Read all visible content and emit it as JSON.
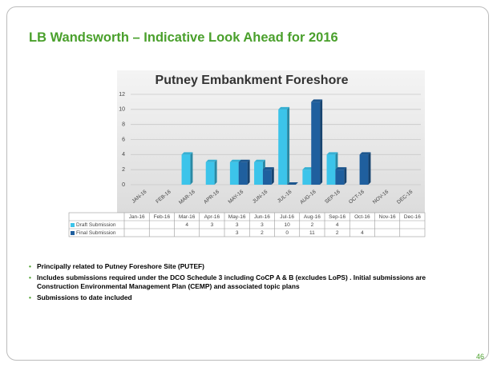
{
  "slide_title": "LB Wandsworth – Indicative Look Ahead for 2016",
  "bullets": [
    "Principally related to Putney Foreshore Site (PUTEF)",
    "Includes submissions required under the DCO Schedule 3 including CoCP A & B (excludes LoPS) . Initial submissions are Construction Environmental Management Plan (CEMP) and associated topic plans",
    "Submissions to date included"
  ],
  "page_number": "46",
  "chart_data": {
    "type": "bar",
    "title": "Putney Embankment Foreshore",
    "categories": [
      "Jan-16",
      "Feb-16",
      "Mar-16",
      "Apr-16",
      "May-16",
      "Jun-16",
      "Jul-16",
      "Aug-16",
      "Sep-16",
      "Oct-16",
      "Nov-16",
      "Dec-16"
    ],
    "x_axis_labels": [
      "JAN-16",
      "FEB-16",
      "MAR-16",
      "APR-16",
      "MAY-16",
      "JUN-16",
      "JUL-16",
      "AUG-16",
      "SEP-16",
      "OCT-16",
      "NOV-16",
      "DEC-16"
    ],
    "series": [
      {
        "name": "Draft Submission",
        "color": "#3cc4ea",
        "values": [
          null,
          null,
          4,
          3,
          3,
          3,
          10,
          2,
          4,
          null,
          null,
          null
        ]
      },
      {
        "name": "Final Submission",
        "color": "#1f5f9e",
        "values": [
          null,
          null,
          null,
          null,
          3,
          2,
          0,
          11,
          2,
          4,
          null,
          null
        ]
      }
    ],
    "ylim": [
      0,
      12
    ],
    "yticks": [
      0,
      2,
      4,
      6,
      8,
      10,
      12
    ],
    "grid": true,
    "data_table": true
  }
}
